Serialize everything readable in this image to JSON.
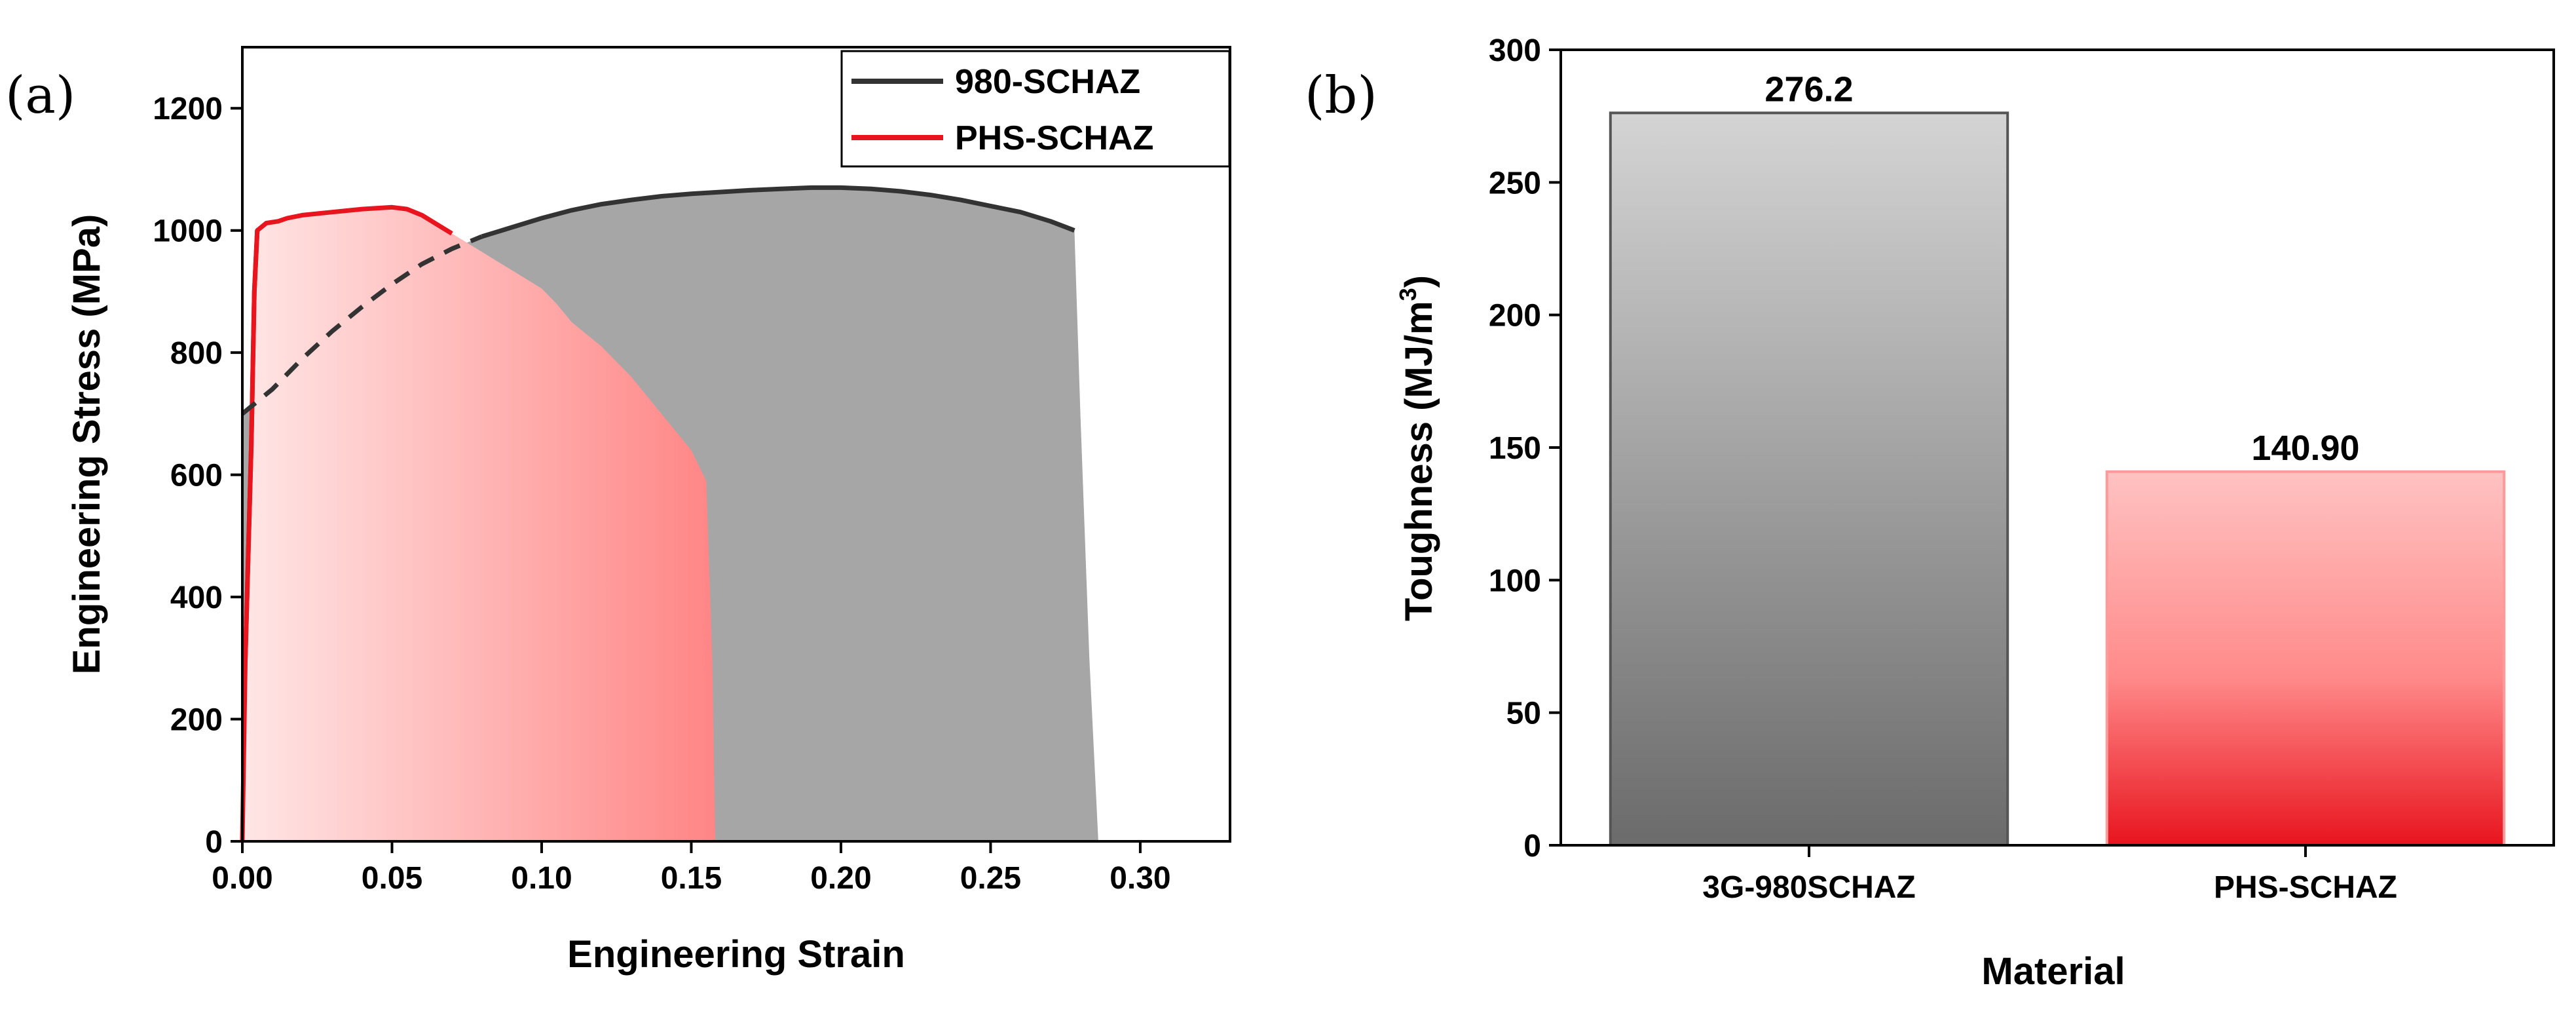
{
  "chart_data": [
    {
      "panel": "(a)",
      "type": "area",
      "xlabel": "Engineering Strain",
      "ylabel": "Engineering Stress (MPa)",
      "xlim": [
        0,
        0.33
      ],
      "ylim": [
        0,
        1300
      ],
      "xticks": [
        "0.00",
        "0.05",
        "0.10",
        "0.15",
        "0.20",
        "0.25",
        "0.30"
      ],
      "yticks": [
        "0",
        "200",
        "400",
        "600",
        "800",
        "1000",
        "1200"
      ],
      "legend": {
        "position": "top-right"
      },
      "series": [
        {
          "name": "980-SCHAZ",
          "color": "#333333",
          "fill": "#a6a6a6",
          "x": [
            0.0,
            0.0,
            0.01,
            0.02,
            0.03,
            0.04,
            0.05,
            0.06,
            0.07,
            0.08,
            0.09,
            0.1,
            0.11,
            0.12,
            0.13,
            0.14,
            0.15,
            0.16,
            0.17,
            0.18,
            0.19,
            0.2,
            0.21,
            0.22,
            0.23,
            0.24,
            0.25,
            0.26,
            0.27,
            0.278,
            0.28,
            0.283,
            0.286
          ],
          "y": [
            0,
            700,
            740,
            790,
            835,
            875,
            912,
            945,
            970,
            990,
            1005,
            1020,
            1033,
            1043,
            1050,
            1056,
            1060,
            1063,
            1066,
            1068,
            1070,
            1070,
            1068,
            1064,
            1058,
            1050,
            1040,
            1030,
            1015,
            1000,
            700,
            300,
            0
          ]
        },
        {
          "name": "PHS-SCHAZ",
          "color": "#e8141e",
          "fill": "#ff8a8a",
          "x": [
            0.0,
            0.001,
            0.003,
            0.004,
            0.005,
            0.008,
            0.012,
            0.015,
            0.02,
            0.03,
            0.04,
            0.05,
            0.055,
            0.06,
            0.065,
            0.07,
            0.075,
            0.08,
            0.09,
            0.1,
            0.105,
            0.11,
            0.12,
            0.13,
            0.14,
            0.15,
            0.155,
            0.157,
            0.158
          ],
          "y": [
            0,
            300,
            650,
            900,
            1000,
            1012,
            1015,
            1020,
            1025,
            1030,
            1035,
            1038,
            1035,
            1025,
            1010,
            995,
            980,
            965,
            935,
            905,
            880,
            850,
            810,
            760,
            700,
            640,
            590,
            300,
            0
          ]
        }
      ],
      "annotations": [
        {
          "type": "dashed-extension",
          "series": "980-SCHAZ",
          "x": [
            0.0,
            0.01,
            0.02,
            0.03,
            0.04,
            0.05,
            0.06,
            0.07,
            0.08
          ],
          "y": [
            700,
            740,
            790,
            835,
            875,
            912,
            945,
            970,
            990
          ]
        }
      ]
    },
    {
      "panel": "(b)",
      "type": "bar",
      "xlabel": "Material",
      "ylabel": "Toughness (MJ/m",
      "ylabel_superscript": "3",
      "ylabel_suffix": ")",
      "ylim": [
        0,
        300
      ],
      "yticks": [
        "0",
        "50",
        "100",
        "150",
        "200",
        "250",
        "300"
      ],
      "categories": [
        "3G-980SCHAZ",
        "PHS-SCHAZ"
      ],
      "values": [
        276.2,
        140.9
      ],
      "value_labels": [
        "276.2",
        "140.90"
      ],
      "colors": [
        "#8c8c8c",
        "#ff8a8a"
      ]
    }
  ]
}
